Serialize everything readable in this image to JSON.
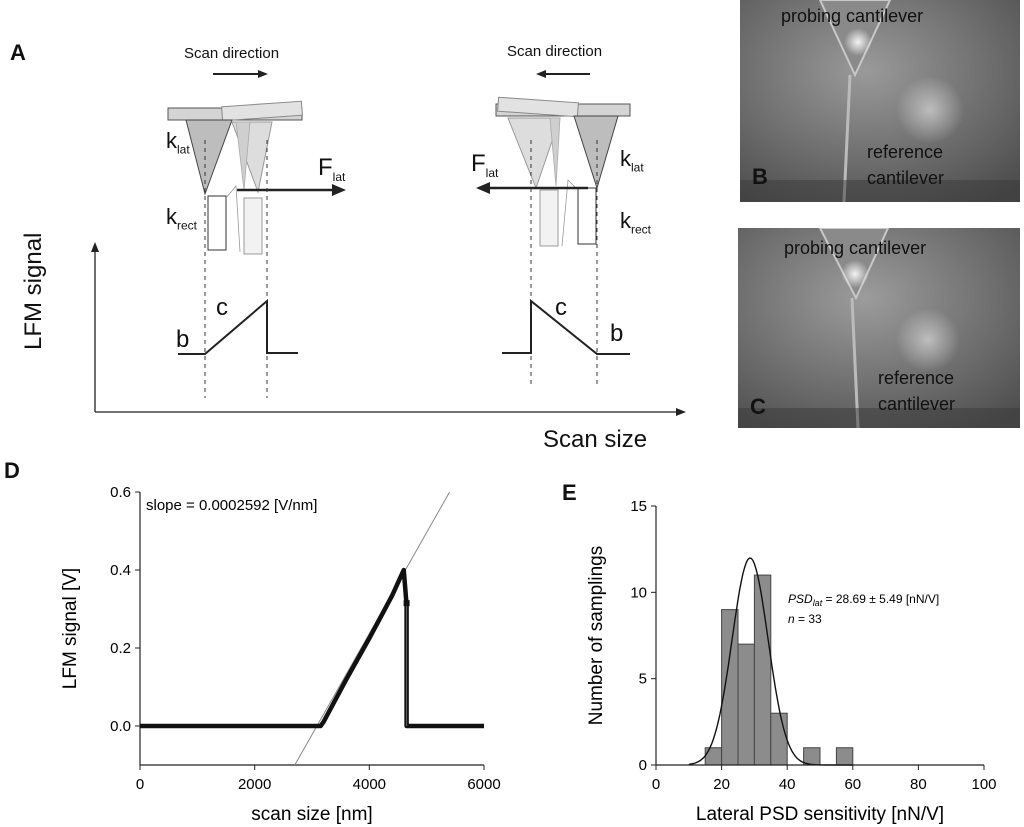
{
  "panels": {
    "A": "A",
    "B": "B",
    "C": "C",
    "D": "D",
    "E": "E"
  },
  "schematic": {
    "scan_direction": "Scan direction",
    "k_lat": "k",
    "k_lat_sub": "lat",
    "k_rect": "k",
    "k_rect_sub": "rect",
    "f_lat": "F",
    "f_lat_sub": "lat",
    "label_b": "b",
    "label_c": "c",
    "y_axis": "LFM signal",
    "x_axis": "Scan size"
  },
  "photos": {
    "B": {
      "probing": "probing cantilever",
      "reference_line1": "reference",
      "reference_line2": "cantilever"
    },
    "C": {
      "probing": "probing cantilever",
      "reference_line1": "reference",
      "reference_line2": "cantilever"
    }
  },
  "chart_data": [
    {
      "panel": "D",
      "type": "line",
      "xlabel": "scan size [nm]",
      "ylabel": "LFM signal [V]",
      "xlim": [
        0,
        6000
      ],
      "ylim": [
        -0.1,
        0.6
      ],
      "xticks": [
        0,
        2000,
        4000,
        6000
      ],
      "yticks": [
        0.0,
        0.2,
        0.4,
        0.6
      ],
      "annotation": "slope = 0.0002592 [V/nm]",
      "series": [
        {
          "values_x": [
            0,
            3150,
            3200,
            3600,
            4000,
            4400,
            4600,
            4650,
            4650,
            6000
          ],
          "values_y": [
            0.0,
            0.0,
            0.01,
            0.12,
            0.225,
            0.335,
            0.4,
            0.31,
            0.0,
            0.0
          ]
        }
      ],
      "fit_line": {
        "x": [
          2700,
          5400
        ],
        "y": [
          -0.1,
          0.6
        ]
      },
      "grid": false
    },
    {
      "panel": "E",
      "type": "bar",
      "xlabel": "Lateral PSD sensitivity [nN/V]",
      "ylabel": "Number of samplings",
      "xlim": [
        0,
        100
      ],
      "ylim": [
        0,
        15
      ],
      "xticks": [
        0,
        20,
        40,
        60,
        80,
        100
      ],
      "yticks": [
        0,
        5,
        10,
        15
      ],
      "bin_width": 5,
      "bin_centers": [
        17.5,
        22.5,
        27.5,
        32.5,
        37.5,
        42.5,
        47.5,
        52.5,
        57.5
      ],
      "values": [
        1,
        9,
        7,
        11,
        3,
        0,
        1,
        0,
        1
      ],
      "fit": {
        "type": "gaussian",
        "mean": 28.69,
        "sd": 5.49,
        "n": 33
      },
      "annotation_line1_italic": "PSD",
      "annotation_line1_sub": "lat",
      "annotation_line1_rest": " = 28.69 ± 5.49 [nN/V]",
      "annotation_line2_italic": "n",
      "annotation_line2_rest": " = 33",
      "grid": false
    }
  ]
}
